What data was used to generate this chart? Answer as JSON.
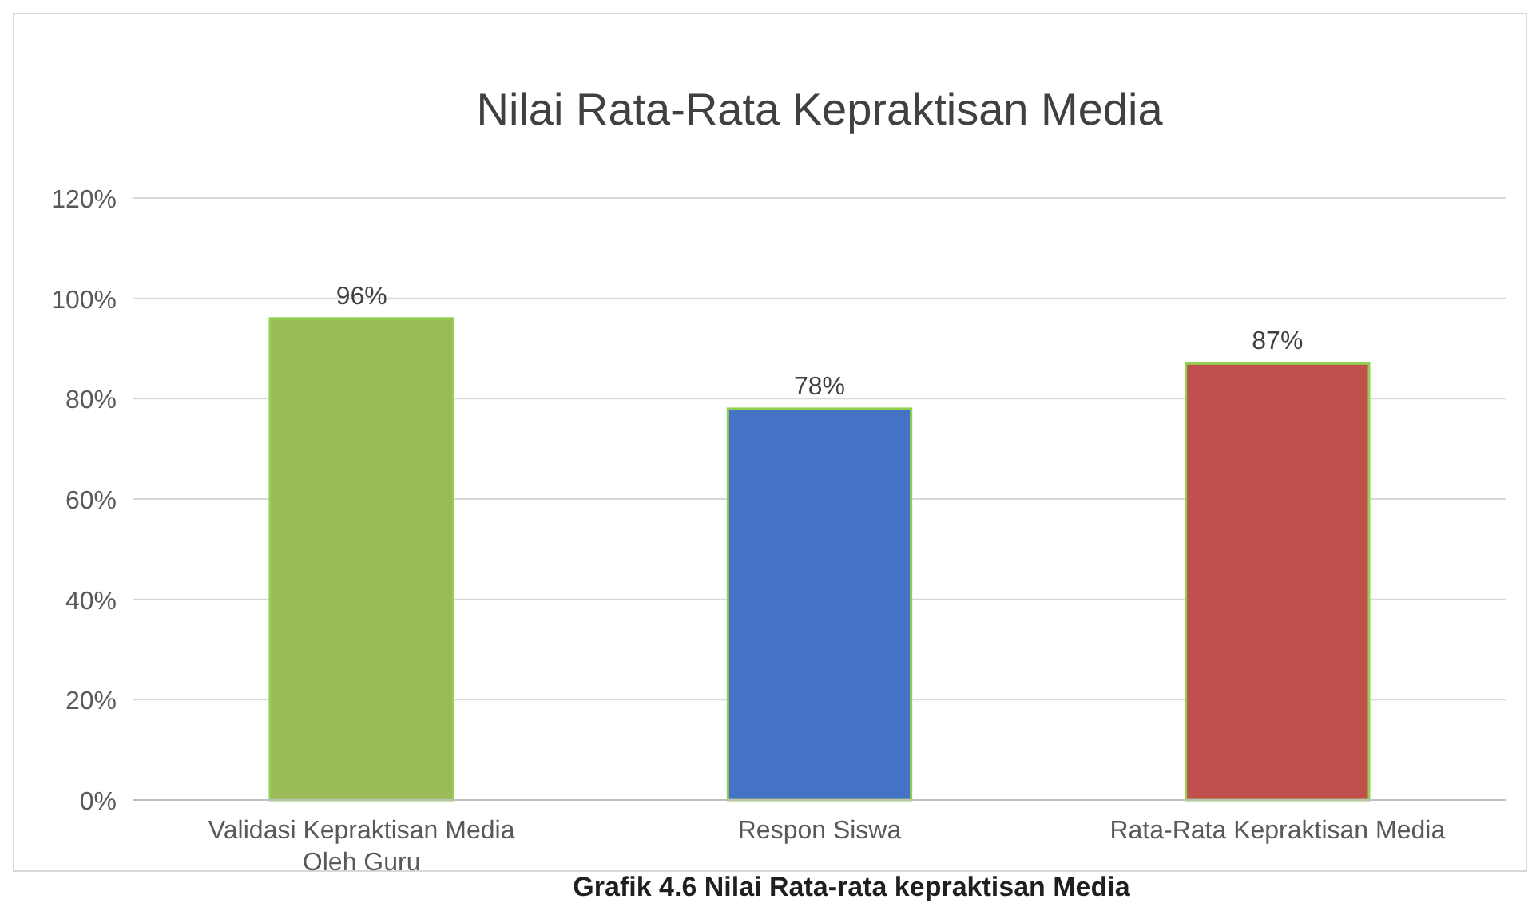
{
  "chart_data": {
    "type": "bar",
    "title": "Nilai Rata-Rata Kepraktisan Media",
    "categories": [
      "Validasi Kepraktisan Media Oleh Guru",
      "Respon Siswa",
      "Rata-Rata Kepraktisan Media"
    ],
    "values": [
      96,
      78,
      87
    ],
    "colors": [
      "#9bbb59",
      "#4472c4",
      "#c0504d"
    ],
    "value_labels": [
      "96%",
      "78%",
      "87%"
    ],
    "ylim": [
      0,
      120
    ],
    "yticks": [
      {
        "value": 0,
        "label": "0%"
      },
      {
        "value": 20,
        "label": "20%"
      },
      {
        "value": 40,
        "label": "40%"
      },
      {
        "value": 60,
        "label": "60%"
      },
      {
        "value": 80,
        "label": "80%"
      },
      {
        "value": 100,
        "label": "100%"
      },
      {
        "value": 120,
        "label": "120%"
      }
    ],
    "grid": "y",
    "annotations": [
      "Grafik  4.6 Nilai Rata-rata kepraktisan Media"
    ]
  }
}
